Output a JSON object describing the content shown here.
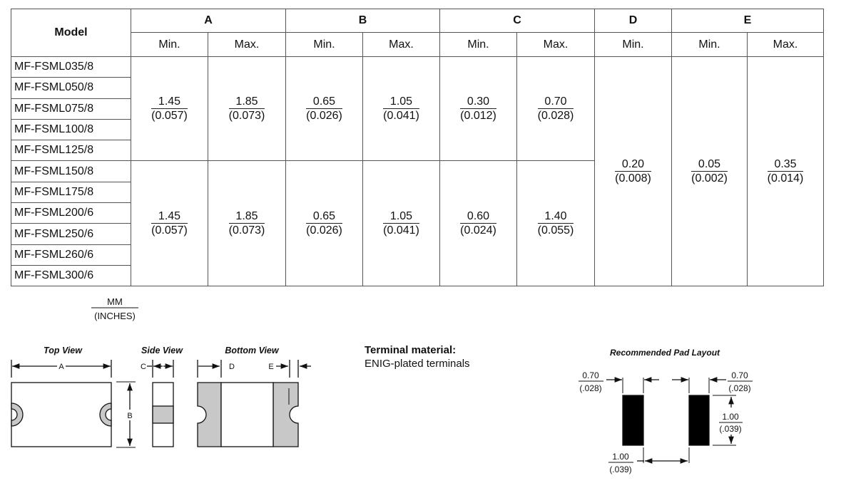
{
  "table": {
    "model_header": "Model",
    "groups": [
      "A",
      "B",
      "C",
      "D",
      "E"
    ],
    "min_label": "Min.",
    "max_label": "Max.",
    "models": [
      "MF-FSML035/8",
      "MF-FSML050/8",
      "MF-FSML075/8",
      "MF-FSML100/8",
      "MF-FSML125/8",
      "MF-FSML150/8",
      "MF-FSML175/8",
      "MF-FSML200/6",
      "MF-FSML250/6",
      "MF-FSML260/6",
      "MF-FSML300/6"
    ],
    "group1": [
      [
        "1.45",
        "(0.057)"
      ],
      [
        "1.85",
        "(0.073)"
      ],
      [
        "0.65",
        "(0.026)"
      ],
      [
        "1.05",
        "(0.041)"
      ],
      [
        "0.30",
        "(0.012)"
      ],
      [
        "0.70",
        "(0.028)"
      ]
    ],
    "group2": [
      [
        "1.45",
        "(0.057)"
      ],
      [
        "1.85",
        "(0.073)"
      ],
      [
        "0.65",
        "(0.026)"
      ],
      [
        "1.05",
        "(0.041)"
      ],
      [
        "0.60",
        "(0.024)"
      ],
      [
        "1.40",
        "(0.055)"
      ]
    ],
    "d_min": [
      "0.20",
      "(0.008)"
    ],
    "e_min": [
      "0.05",
      "(0.002)"
    ],
    "e_max": [
      "0.35",
      "(0.014)"
    ]
  },
  "units": {
    "top": "MM",
    "bottom": "(INCHES)"
  },
  "diagrams": {
    "top_view": "Top View",
    "side_view": "Side View",
    "bottom_view": "Bottom View",
    "labels": {
      "a": "A",
      "b": "B",
      "c": "C",
      "d": "D",
      "e": "E"
    }
  },
  "terminal": {
    "title": "Terminal material:",
    "text": "ENIG-plated terminals"
  },
  "pad_layout": {
    "title": "Recommended Pad Layout",
    "left_width": [
      "0.70",
      "(.028)"
    ],
    "right_width": [
      "0.70",
      "(.028)"
    ],
    "height": [
      "1.00",
      "(.039)"
    ],
    "gap": [
      "1.00",
      "(.039)"
    ]
  },
  "colors": {
    "terminal_gray": "#c8c8c8",
    "pad": "#000000"
  }
}
